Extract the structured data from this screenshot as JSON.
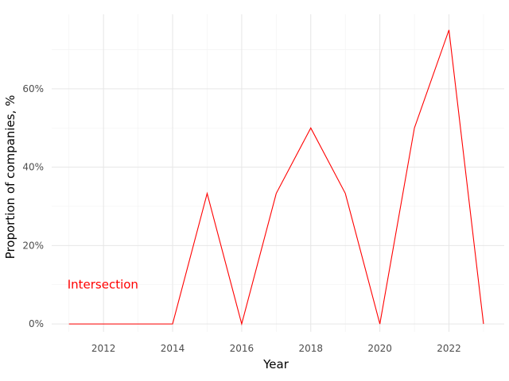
{
  "chart_data": {
    "type": "line",
    "title": "",
    "xlabel": "Year",
    "ylabel": "Proportion of companies, %",
    "xlim": [
      2010.5,
      2023.6
    ],
    "ylim": [
      -2,
      79
    ],
    "grid": true,
    "x_ticks": [
      2012,
      2014,
      2016,
      2018,
      2020,
      2022
    ],
    "x_tick_labels": [
      "2012",
      "2014",
      "2016",
      "2018",
      "2020",
      "2022"
    ],
    "y_ticks": [
      0,
      20,
      40,
      60
    ],
    "y_tick_labels": [
      "0%",
      "20%",
      "40%",
      "60%"
    ],
    "series": [
      {
        "color": "#ff0000",
        "x": [
          2011,
          2012,
          2013,
          2014,
          2015,
          2016,
          2017,
          2018,
          2019,
          2020,
          2021,
          2022,
          2023
        ],
        "y": [
          0,
          0,
          0,
          0,
          33.3,
          0,
          33.3,
          50,
          33.3,
          0,
          50,
          75,
          0
        ]
      }
    ],
    "annotations": [
      {
        "text": "Intersection",
        "x": 2011,
        "y": 10,
        "color": "#ff0000"
      }
    ]
  }
}
